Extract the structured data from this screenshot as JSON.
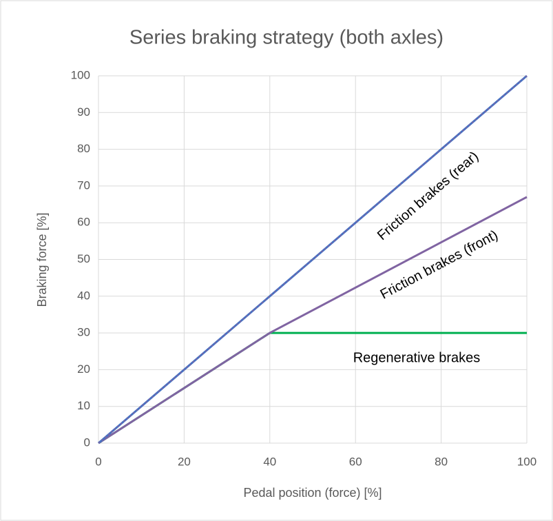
{
  "chart_data": {
    "type": "line",
    "title": "Series braking strategy (both axles)",
    "x_label": "Pedal position (force) [%]",
    "y_label": "Braking force [%]",
    "xlim": [
      0,
      100
    ],
    "ylim": [
      0,
      100
    ],
    "xticks": [
      0,
      20,
      40,
      60,
      80,
      100
    ],
    "yticks": [
      0,
      10,
      20,
      30,
      40,
      50,
      60,
      70,
      80,
      90,
      100
    ],
    "grid": true,
    "series": [
      {
        "name": "Regenerative brakes",
        "color": "#00b050",
        "x": [
          0,
          40,
          100
        ],
        "values": [
          0,
          30,
          30
        ]
      },
      {
        "name": "Friction brakes (front)",
        "color": "#8064a2",
        "x": [
          0,
          40,
          100
        ],
        "values": [
          0,
          30,
          67
        ]
      },
      {
        "name": "Friction brakes (rear)",
        "color": "#4472c4",
        "dash_color": "#8064a2",
        "x": [
          0,
          40,
          100
        ],
        "values": [
          0,
          40,
          100
        ]
      }
    ]
  }
}
